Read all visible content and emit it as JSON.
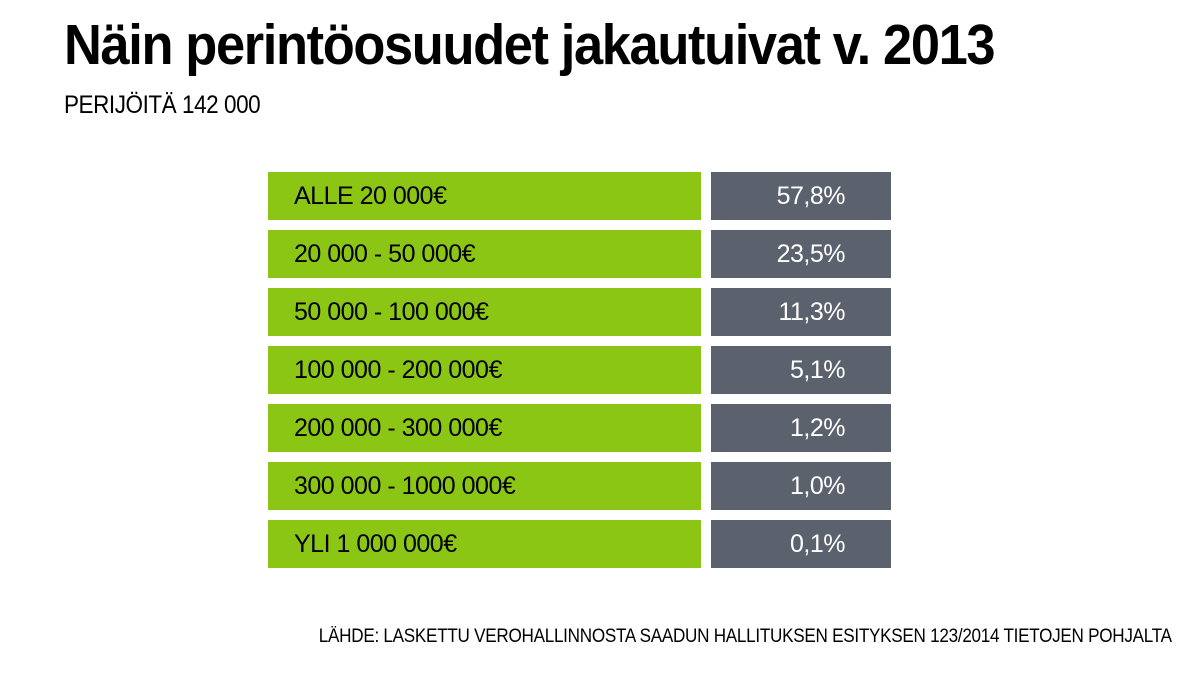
{
  "chart_data": {
    "type": "table",
    "title": "Näin perintöosuudet jakautuivat v. 2013",
    "subtitle": "PERIJÖITÄ 142 000",
    "categories": [
      "ALLE 20 000€",
      "20 000 - 50 000€",
      "50 000 - 100 000€",
      "100 000 - 200 000€",
      "200 000 - 300 000€",
      "300 000 - 1000 000€",
      "YLI 1 000 000€"
    ],
    "values": [
      57.8,
      23.5,
      11.3,
      5.1,
      1.2,
      1.0,
      0.1
    ],
    "value_labels": [
      "57,8%",
      "23,5%",
      "11,3%",
      "5,1%",
      "1,2%",
      "1,0%",
      "0,1%"
    ],
    "source": "LÄHDE: LASKETTU VEROHALLINNOSTA SAADUN HALLITUKSEN ESITYKSEN 123/2014 TIETOJEN POHJALTA"
  },
  "colors": {
    "label_bg": "#8cc614",
    "value_bg": "#5b626d",
    "label_text": "#000000",
    "value_text": "#ffffff"
  }
}
